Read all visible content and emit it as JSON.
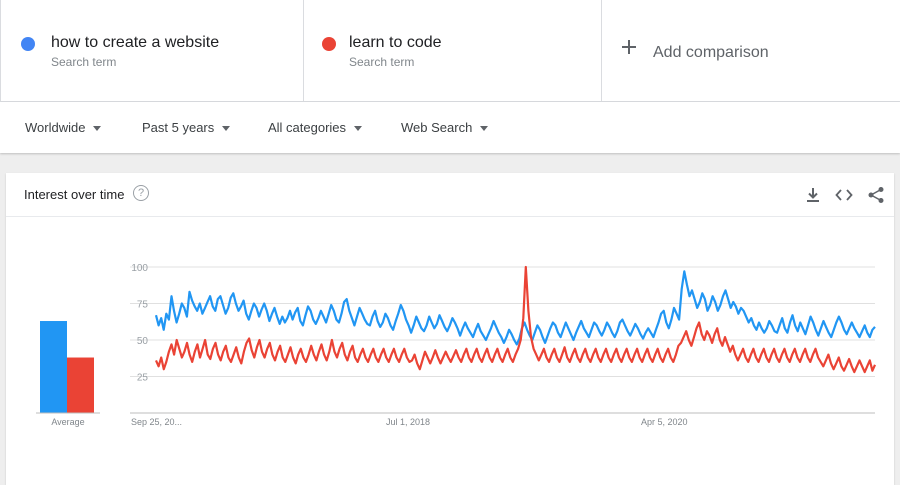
{
  "terms": [
    {
      "name": "how to create a website",
      "subtitle": "Search term",
      "color": "#4285f4"
    },
    {
      "name": "learn to code",
      "subtitle": "Search term",
      "color": "#ea4335"
    }
  ],
  "add_comparison": "Add comparison",
  "filters": {
    "region": "Worldwide",
    "period": "Past 5 years",
    "category": "All categories",
    "search_type": "Web Search"
  },
  "card": {
    "title": "Interest over time",
    "help_glyph": "?",
    "icons": [
      "download-icon",
      "embed-icon",
      "share-icon"
    ]
  },
  "chart_data": {
    "type": "line",
    "y_ticks": [
      25,
      50,
      75,
      100
    ],
    "ylim": [
      0,
      100
    ],
    "x_tick_labels": [
      "Sep 25, 20...",
      "Jul 1, 2018",
      "Apr 5, 2020"
    ],
    "grid": true,
    "averages": {
      "label": "Average",
      "values": [
        63,
        38
      ]
    },
    "series": [
      {
        "name": "how to create a website",
        "color": "#2196f3",
        "values": [
          67,
          60,
          65,
          57,
          68,
          64,
          80,
          70,
          62,
          68,
          75,
          72,
          66,
          83,
          77,
          73,
          70,
          75,
          68,
          72,
          76,
          80,
          73,
          70,
          78,
          80,
          74,
          68,
          72,
          79,
          82,
          75,
          70,
          73,
          77,
          68,
          64,
          70,
          75,
          72,
          66,
          71,
          75,
          70,
          63,
          68,
          72,
          66,
          61,
          66,
          62,
          65,
          70,
          64,
          69,
          72,
          63,
          60,
          67,
          73,
          70,
          64,
          61,
          65,
          70,
          66,
          62,
          68,
          74,
          70,
          64,
          62,
          68,
          76,
          78,
          70,
          65,
          60,
          66,
          72,
          68,
          64,
          61,
          60,
          66,
          70,
          63,
          59,
          62,
          68,
          65,
          60,
          57,
          63,
          68,
          74,
          70,
          64,
          60,
          55,
          60,
          66,
          62,
          58,
          56,
          60,
          66,
          62,
          58,
          61,
          67,
          63,
          59,
          56,
          60,
          65,
          62,
          58,
          53,
          58,
          62,
          58,
          55,
          52,
          57,
          61,
          56,
          53,
          50,
          54,
          58,
          63,
          59,
          55,
          52,
          48,
          52,
          57,
          54,
          50,
          47,
          51,
          58,
          62,
          57,
          53,
          50,
          55,
          60,
          57,
          52,
          48,
          53,
          58,
          62,
          60,
          55,
          52,
          57,
          62,
          58,
          54,
          50,
          55,
          59,
          63,
          58,
          55,
          52,
          57,
          62,
          60,
          56,
          53,
          57,
          62,
          59,
          55,
          52,
          56,
          62,
          64,
          60,
          56,
          53,
          57,
          61,
          58,
          54,
          51,
          55,
          58,
          55,
          52,
          57,
          62,
          68,
          70,
          62,
          58,
          64,
          72,
          68,
          64,
          85,
          97,
          88,
          80,
          84,
          78,
          72,
          76,
          82,
          78,
          70,
          74,
          80,
          76,
          70,
          74,
          80,
          84,
          78,
          72,
          76,
          73,
          68,
          72,
          70,
          66,
          62,
          65,
          60,
          57,
          62,
          58,
          55,
          58,
          63,
          60,
          56,
          55,
          60,
          65,
          58,
          55,
          62,
          67,
          60,
          56,
          62,
          58,
          54,
          60,
          66,
          62,
          57,
          53,
          58,
          63,
          59,
          55,
          52,
          57,
          62,
          66,
          62,
          57,
          54,
          58,
          62,
          58,
          55,
          52,
          56,
          60,
          55,
          52,
          57,
          59
        ]
      },
      {
        "name": "learn to code",
        "color": "#ea4335",
        "values": [
          36,
          32,
          38,
          30,
          35,
          42,
          47,
          40,
          50,
          44,
          38,
          42,
          48,
          40,
          35,
          42,
          47,
          38,
          44,
          50,
          40,
          37,
          44,
          48,
          40,
          36,
          42,
          46,
          38,
          35,
          40,
          45,
          38,
          34,
          42,
          48,
          51,
          43,
          38,
          45,
          50,
          42,
          38,
          44,
          48,
          40,
          36,
          42,
          46,
          38,
          35,
          40,
          45,
          38,
          34,
          40,
          44,
          38,
          35,
          40,
          46,
          40,
          36,
          42,
          47,
          40,
          36,
          42,
          50,
          42,
          38,
          44,
          48,
          40,
          36,
          42,
          46,
          38,
          35,
          40,
          44,
          38,
          35,
          40,
          44,
          38,
          35,
          40,
          44,
          38,
          35,
          40,
          44,
          38,
          35,
          40,
          44,
          38,
          35,
          36,
          40,
          34,
          30,
          36,
          42,
          38,
          34,
          38,
          43,
          38,
          34,
          38,
          42,
          38,
          35,
          39,
          43,
          38,
          35,
          40,
          44,
          38,
          35,
          40,
          44,
          38,
          35,
          40,
          44,
          38,
          35,
          40,
          44,
          38,
          35,
          40,
          44,
          38,
          35,
          40,
          44,
          50,
          65,
          100,
          70,
          52,
          44,
          40,
          36,
          40,
          44,
          38,
          35,
          40,
          44,
          38,
          35,
          40,
          45,
          38,
          35,
          40,
          44,
          38,
          35,
          40,
          44,
          38,
          35,
          40,
          44,
          38,
          35,
          40,
          44,
          38,
          35,
          40,
          44,
          38,
          35,
          40,
          44,
          38,
          35,
          40,
          44,
          38,
          35,
          40,
          44,
          38,
          35,
          40,
          44,
          38,
          35,
          40,
          44,
          38,
          35,
          40,
          46,
          48,
          52,
          56,
          50,
          46,
          52,
          58,
          62,
          54,
          50,
          56,
          53,
          48,
          54,
          58,
          50,
          46,
          52,
          47,
          42,
          46,
          40,
          36,
          40,
          44,
          38,
          35,
          40,
          44,
          38,
          35,
          40,
          44,
          38,
          35,
          40,
          44,
          38,
          35,
          40,
          44,
          38,
          35,
          40,
          44,
          38,
          35,
          40,
          44,
          38,
          35,
          40,
          44,
          38,
          35,
          32,
          36,
          40,
          34,
          30,
          34,
          38,
          32,
          29,
          33,
          37,
          32,
          28,
          32,
          36,
          32,
          28,
          32,
          36,
          29,
          33
        ]
      }
    ]
  }
}
